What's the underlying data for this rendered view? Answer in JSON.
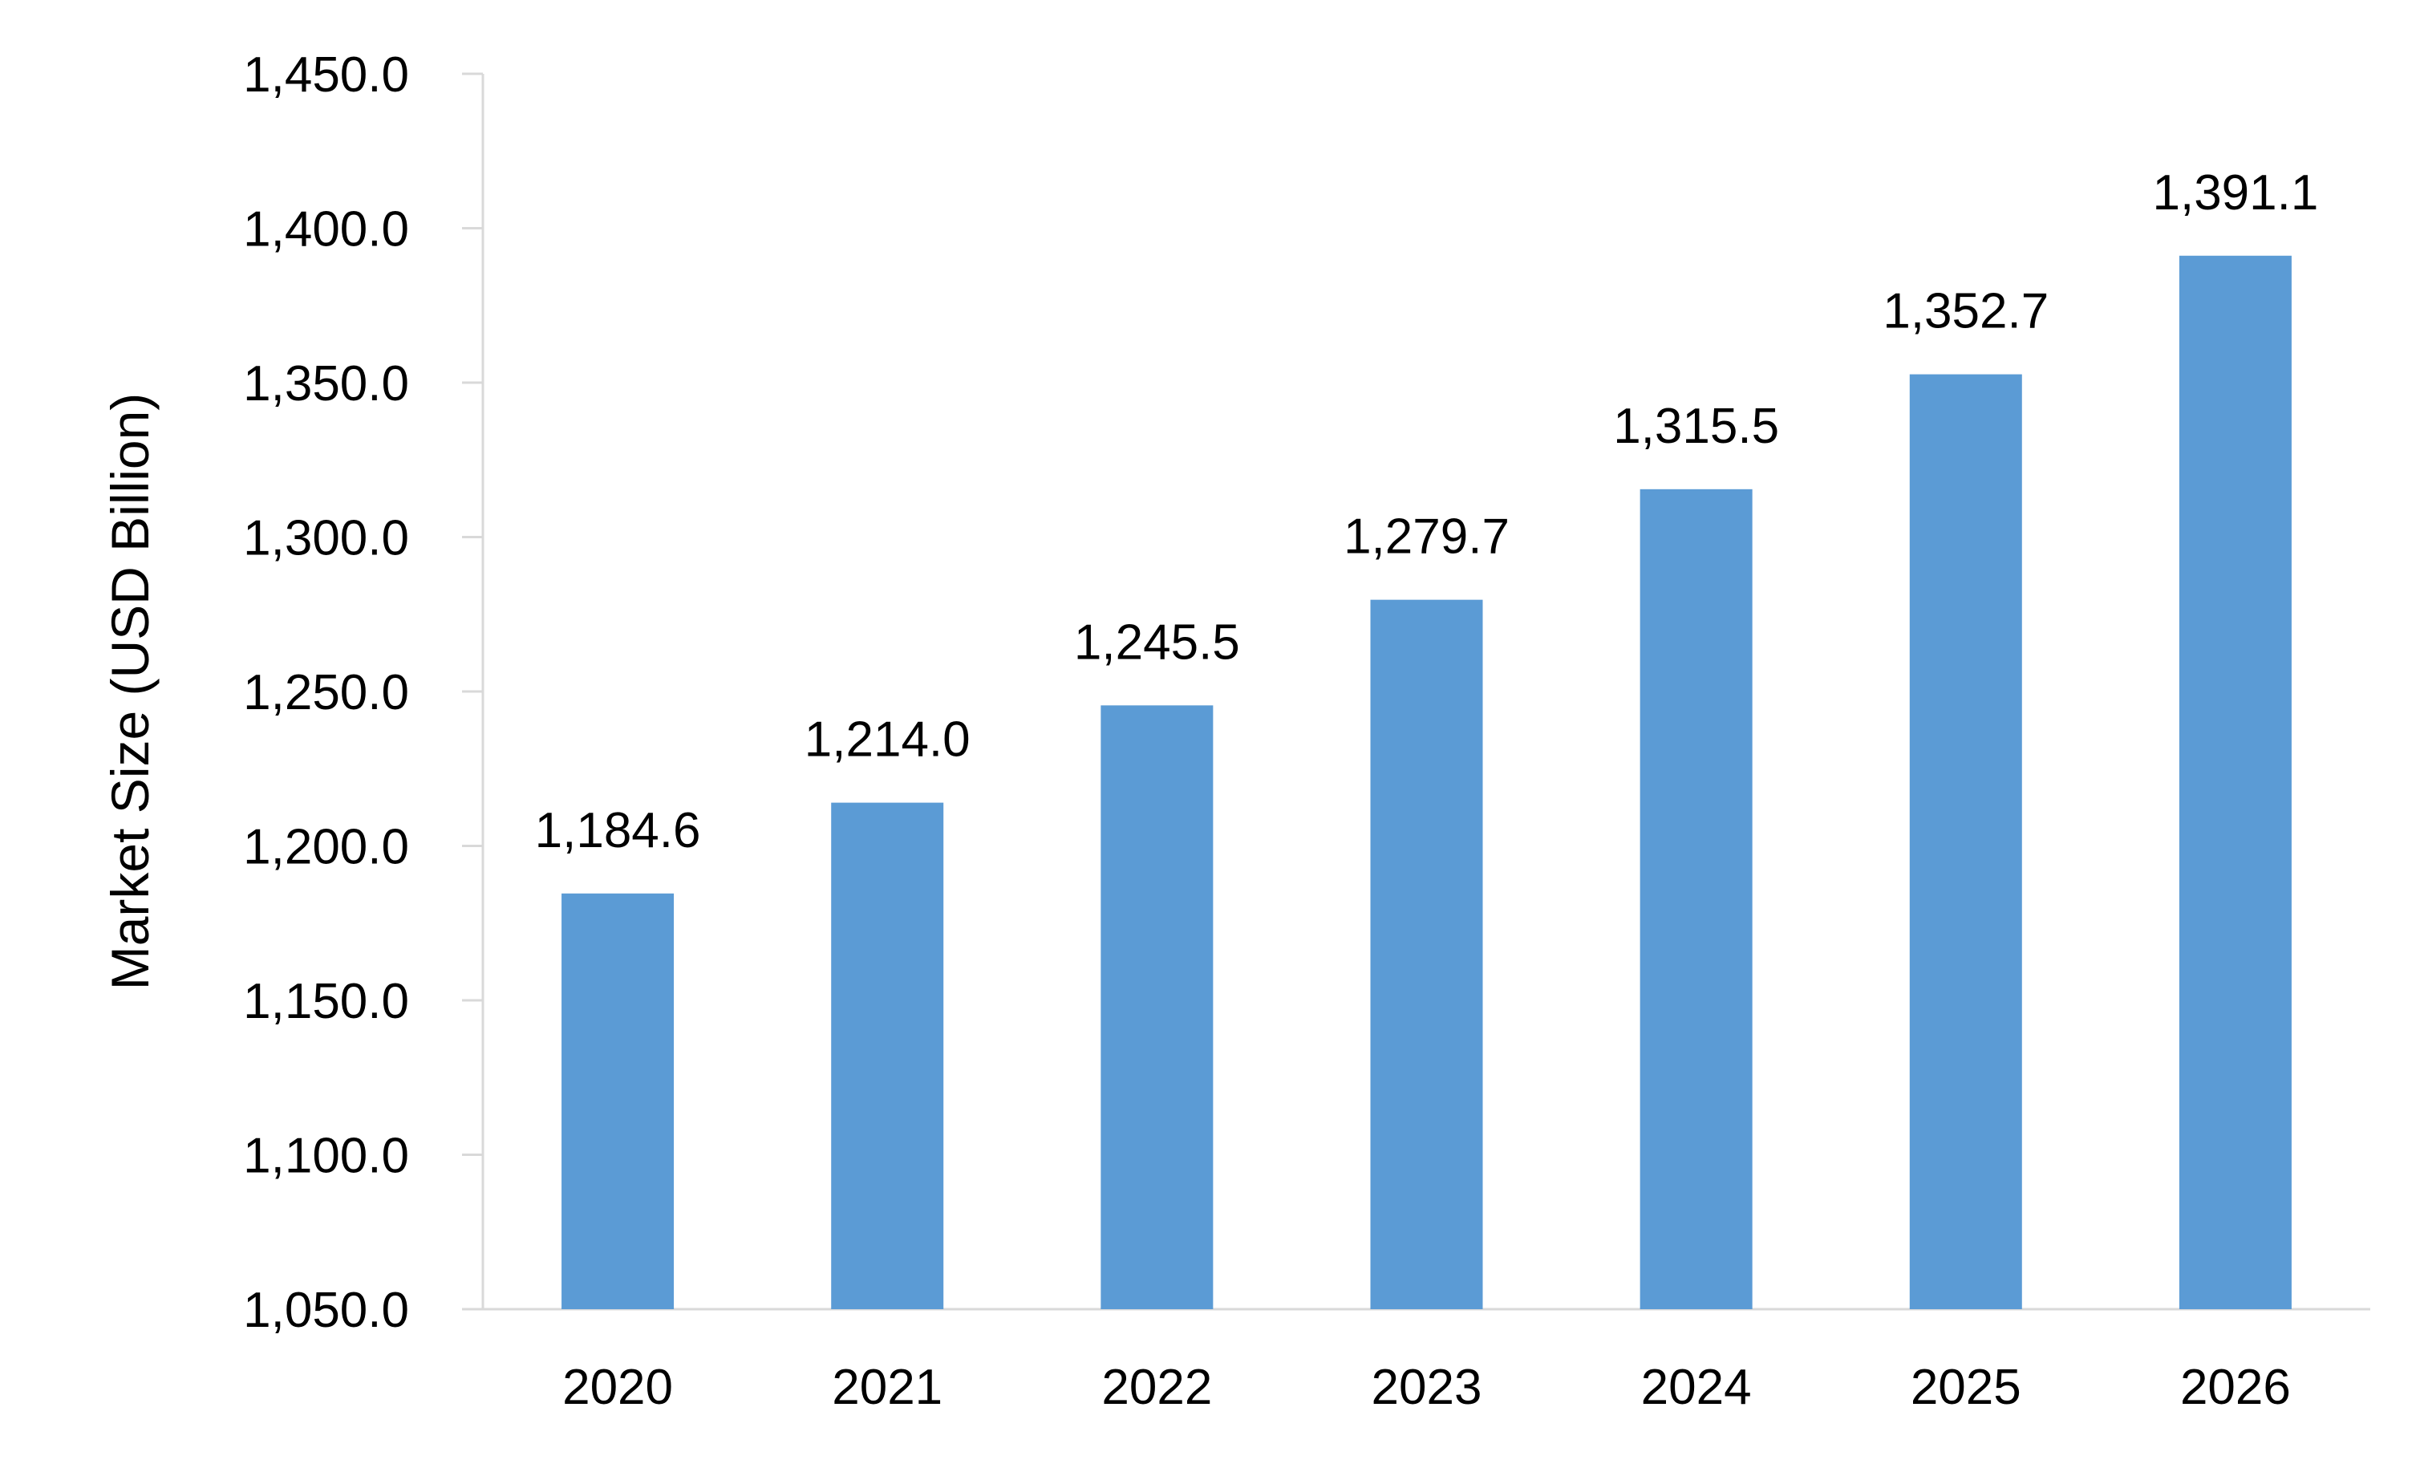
{
  "chart_data": {
    "type": "bar",
    "categories": [
      "2020",
      "2021",
      "2022",
      "2023",
      "2024",
      "2025",
      "2026"
    ],
    "values": [
      1184.6,
      1214.0,
      1245.5,
      1279.7,
      1315.5,
      1352.7,
      1391.1
    ],
    "data_labels": [
      "1,184.6",
      "1,214.0",
      "1,245.5",
      "1,279.7",
      "1,315.5",
      "1,352.7",
      "1,391.1"
    ],
    "ylabel": "Market Size (USD Billion)",
    "xlabel": "",
    "ylim": [
      1050,
      1450
    ],
    "yticks": [
      1050,
      1100,
      1150,
      1200,
      1250,
      1300,
      1350,
      1400,
      1450
    ],
    "ytick_labels": [
      "1,050.0",
      "1,100.0",
      "1,150.0",
      "1,200.0",
      "1,250.0",
      "1,300.0",
      "1,350.0",
      "1,400.0",
      "1,450.0"
    ],
    "grid": false,
    "legend": "none",
    "bar_color": "#5b9bd5",
    "axis_color": "#d9d9d9"
  }
}
